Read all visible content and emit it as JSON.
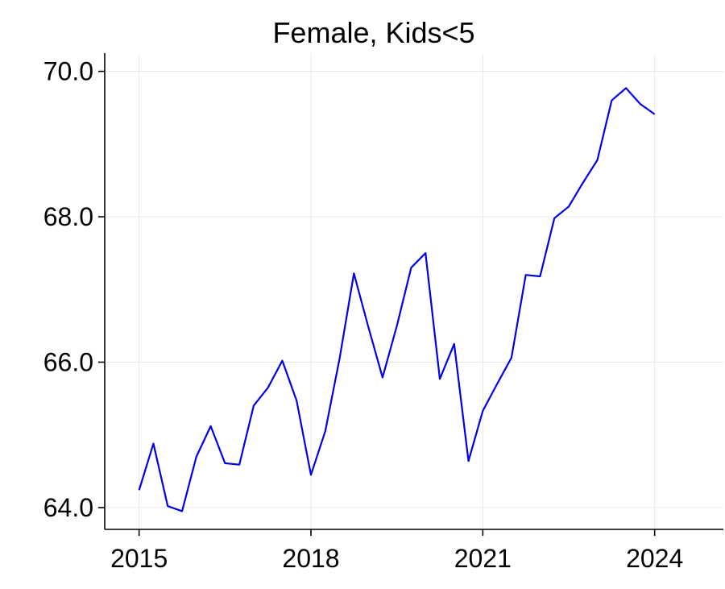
{
  "chart_data": {
    "type": "line",
    "title": "Female, Kids<5",
    "xlabel": "",
    "ylabel": "",
    "xlim": [
      2014.4,
      2025.2
    ],
    "ylim": [
      63.7,
      70.25
    ],
    "x_ticks": [
      2015,
      2018,
      2021,
      2024
    ],
    "x_tick_labels": [
      "2015",
      "2018",
      "2021",
      "2024"
    ],
    "y_ticks": [
      64,
      66,
      68,
      70
    ],
    "y_tick_labels": [
      "64.0",
      "66.0",
      "68.0",
      "70.0"
    ],
    "grid": true,
    "legend": false,
    "series": [
      {
        "color": "#0000ee",
        "x": [
          2015.0,
          2015.25,
          2015.5,
          2015.75,
          2016.0,
          2016.25,
          2016.5,
          2016.75,
          2017.0,
          2017.25,
          2017.5,
          2017.75,
          2018.0,
          2018.25,
          2018.5,
          2018.75,
          2019.0,
          2019.25,
          2019.5,
          2019.75,
          2020.0,
          2020.25,
          2020.5,
          2020.75,
          2021.0,
          2021.25,
          2021.5,
          2021.75,
          2022.0,
          2022.25,
          2022.5,
          2022.75,
          2023.0,
          2023.25,
          2023.5,
          2023.75,
          2024.0
        ],
        "y": [
          64.24,
          64.88,
          64.02,
          63.95,
          64.7,
          65.12,
          64.61,
          64.59,
          65.4,
          65.65,
          66.02,
          65.47,
          64.45,
          65.05,
          66.05,
          67.22,
          66.49,
          65.79,
          66.5,
          67.3,
          67.5,
          65.77,
          66.25,
          64.64,
          65.33,
          65.7,
          66.06,
          67.2,
          67.18,
          67.98,
          68.14,
          68.47,
          68.78,
          69.6,
          69.77,
          69.55,
          69.41
        ]
      }
    ]
  }
}
